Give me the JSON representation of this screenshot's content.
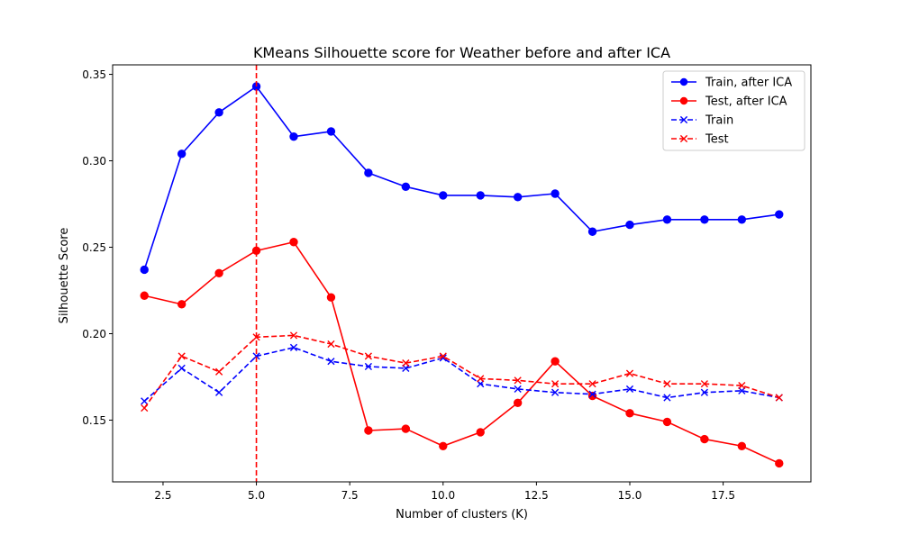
{
  "chart_data": {
    "type": "line",
    "title": "KMeans Silhouette score for Weather before and after ICA",
    "xlabel": "Number of clusters (K)",
    "ylabel": "Silhouette Score",
    "xlim": [
      1.15,
      19.85
    ],
    "ylim": [
      0.1143,
      0.3555
    ],
    "xticks": [
      2.5,
      5.0,
      7.5,
      10.0,
      12.5,
      15.0,
      17.5
    ],
    "xtick_labels": [
      "2.5",
      "5.0",
      "7.5",
      "10.0",
      "12.5",
      "15.0",
      "17.5"
    ],
    "yticks": [
      0.15,
      0.2,
      0.25,
      0.3,
      0.35
    ],
    "ytick_labels": [
      "0.15",
      "0.20",
      "0.25",
      "0.30",
      "0.35"
    ],
    "grid": false,
    "legend_position": "top-right",
    "x": [
      2,
      3,
      4,
      5,
      6,
      7,
      8,
      9,
      10,
      11,
      12,
      13,
      14,
      15,
      16,
      17,
      18,
      19
    ],
    "series": [
      {
        "name": "Train, after ICA",
        "color": "#0000ff",
        "linestyle": "solid",
        "marker": "circle",
        "values": [
          0.237,
          0.304,
          0.328,
          0.343,
          0.314,
          0.317,
          0.293,
          0.285,
          0.28,
          0.28,
          0.279,
          0.281,
          0.259,
          0.263,
          0.266,
          0.266,
          0.266,
          0.269
        ]
      },
      {
        "name": "Test, after ICA",
        "color": "#ff0000",
        "linestyle": "solid",
        "marker": "circle",
        "values": [
          0.222,
          0.217,
          0.235,
          0.248,
          0.253,
          0.221,
          0.144,
          0.145,
          0.135,
          0.143,
          0.16,
          0.184,
          0.164,
          0.154,
          0.149,
          0.139,
          0.135,
          0.125
        ]
      },
      {
        "name": "Train",
        "color": "#0000ff",
        "linestyle": "dashed",
        "marker": "x",
        "values": [
          0.161,
          0.18,
          0.166,
          0.187,
          0.192,
          0.184,
          0.181,
          0.18,
          0.186,
          0.171,
          0.168,
          0.166,
          0.165,
          0.168,
          0.163,
          0.166,
          0.167,
          0.163
        ]
      },
      {
        "name": "Test",
        "color": "#ff0000",
        "linestyle": "dashed",
        "marker": "x",
        "values": [
          0.157,
          0.187,
          0.178,
          0.198,
          0.199,
          0.194,
          0.187,
          0.183,
          0.187,
          0.174,
          0.173,
          0.171,
          0.171,
          0.177,
          0.171,
          0.171,
          0.17,
          0.163
        ]
      }
    ],
    "annotations": [
      {
        "type": "vline",
        "x": 5,
        "color": "#ff0000",
        "linestyle": "dashed"
      }
    ]
  }
}
